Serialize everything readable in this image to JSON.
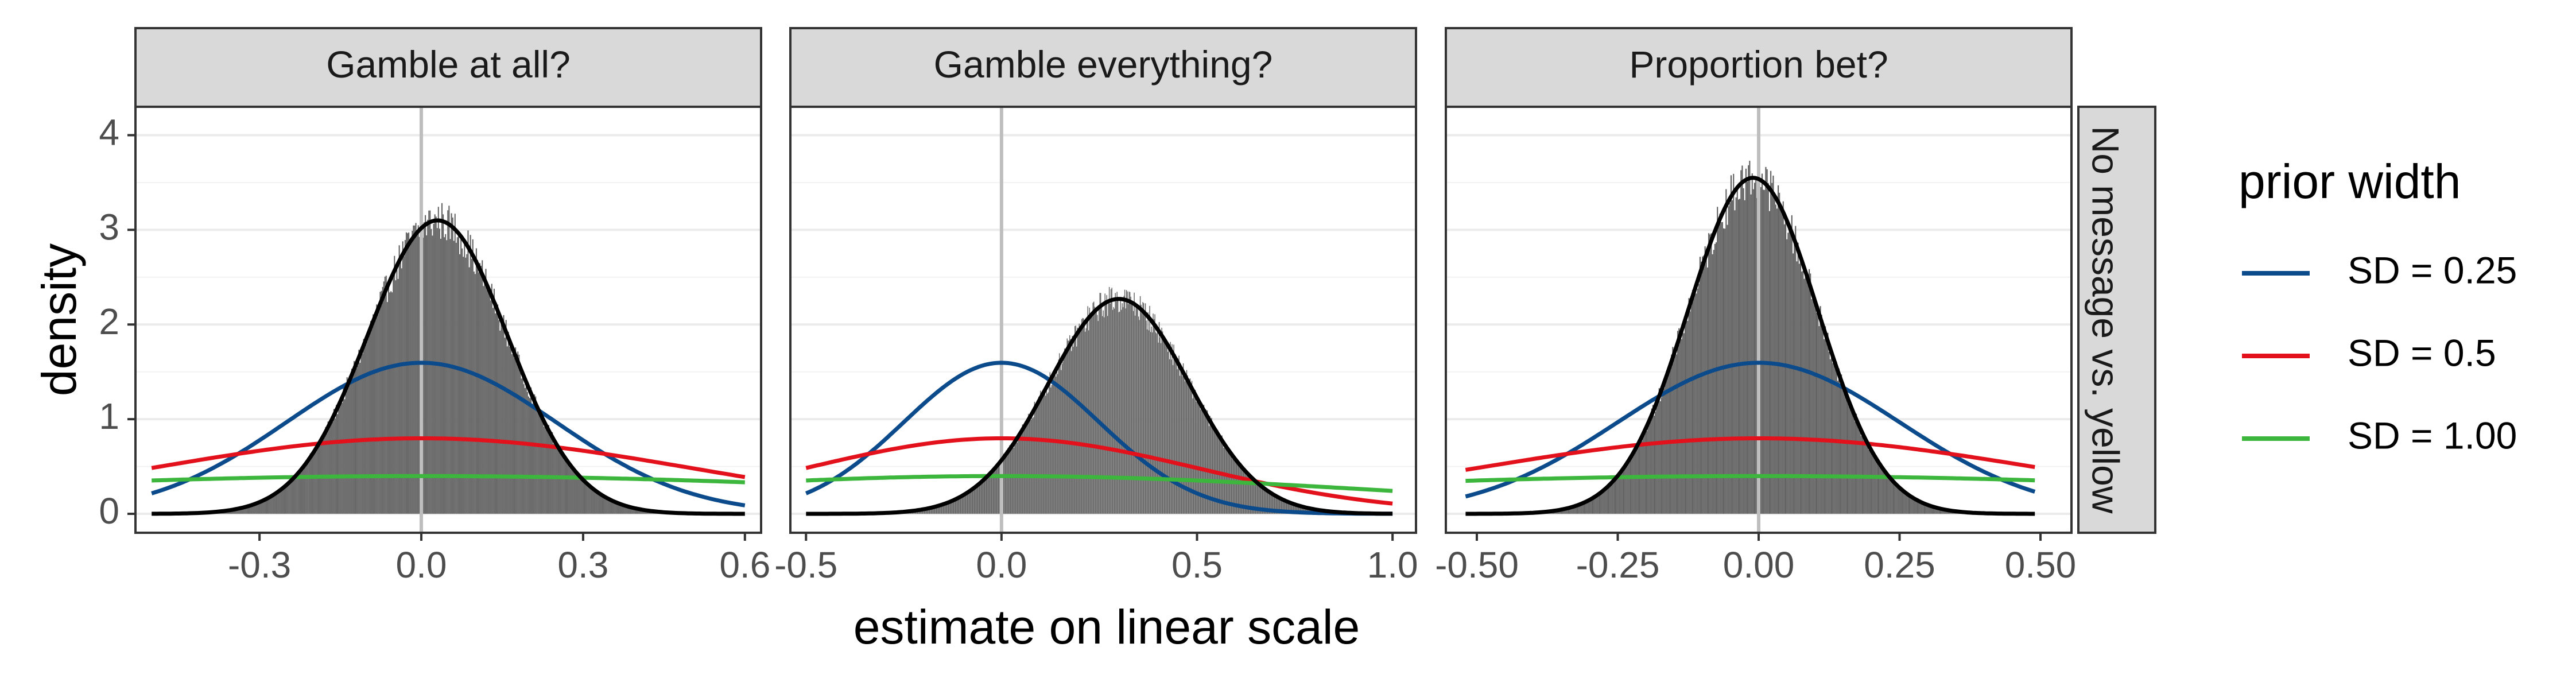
{
  "chart_data": {
    "type": "histogram",
    "xlabel": "estimate on linear scale",
    "ylabel": "density",
    "row_strip": "No message vs. yellow",
    "legend": {
      "title": "prior width",
      "position": "right",
      "entries": [
        {
          "label": "SD = 0.25",
          "color": "#0b4a8b",
          "sd": 0.25
        },
        {
          "label": "SD = 0.5",
          "color": "#e3111b",
          "sd": 0.5
        },
        {
          "label": "SD = 1.00",
          "color": "#3cb63c",
          "sd": 1.0
        }
      ]
    },
    "ylim": [
      -0.2,
      4.3
    ],
    "yticks": [
      0,
      1,
      2,
      3,
      4
    ],
    "grid": true,
    "reference_line_x": 0,
    "panels": [
      {
        "title": "Gamble at all?",
        "xlim": [
          -0.53,
          0.63
        ],
        "xticks": [
          -0.3,
          0.0,
          0.3,
          0.6
        ],
        "xtick_labels": [
          "-0.3",
          "0.0",
          "0.3",
          "0.6"
        ],
        "curve_range": [
          -0.5,
          0.6
        ],
        "posterior": {
          "mean": 0.03,
          "sd": 0.13,
          "peak": 3.1
        },
        "histogram": {
          "x": [
            -0.3,
            -0.25,
            -0.2,
            -0.15,
            -0.1,
            -0.05,
            0.0,
            0.05,
            0.1,
            0.15,
            0.2,
            0.25,
            0.3,
            0.35,
            0.4
          ],
          "density": [
            0.14,
            0.41,
            0.91,
            1.62,
            2.35,
            2.9,
            3.1,
            2.95,
            2.45,
            1.75,
            1.02,
            0.48,
            0.18,
            0.05,
            0.01
          ]
        }
      },
      {
        "title": "Gamble everything?",
        "xlim": [
          -0.54,
          1.06
        ],
        "xticks": [
          -0.5,
          0.0,
          0.5,
          1.0
        ],
        "xtick_labels": [
          "-0.5",
          "0.0",
          "0.5",
          "1.0"
        ],
        "curve_range": [
          -0.5,
          1.0
        ],
        "posterior": {
          "mean": 0.3,
          "sd": 0.18,
          "peak": 2.27
        },
        "histogram": {
          "x": [
            -0.1,
            0.0,
            0.1,
            0.2,
            0.3,
            0.4,
            0.5,
            0.6,
            0.7
          ],
          "density": [
            0.19,
            0.56,
            1.23,
            1.95,
            2.27,
            1.95,
            1.23,
            0.56,
            0.19
          ]
        }
      },
      {
        "title": "Proportion bet?",
        "xlim": [
          -0.555,
          0.555
        ],
        "xticks": [
          -0.5,
          -0.25,
          0.0,
          0.25,
          0.5
        ],
        "xtick_labels": [
          "-0.50",
          "-0.25",
          "0.00",
          "0.25",
          "0.50"
        ],
        "curve_range": [
          -0.52,
          0.49
        ],
        "posterior": {
          "mean": -0.01,
          "sd": 0.115,
          "peak": 3.55
        },
        "histogram": {
          "x": [
            -0.3,
            -0.2,
            -0.1,
            0.0,
            0.1,
            0.2,
            0.3
          ],
          "density": [
            0.1,
            0.72,
            2.4,
            3.55,
            2.4,
            0.72,
            0.1
          ]
        }
      }
    ]
  }
}
